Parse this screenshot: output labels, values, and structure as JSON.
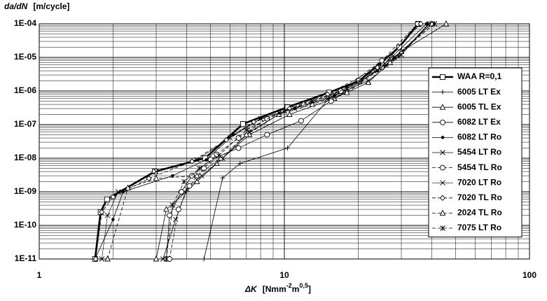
{
  "chart_data": {
    "type": "line",
    "y_label_symbol": "da/dN",
    "y_label_unit": "[m/cycle]",
    "x_label_symbol": "ΔK",
    "x_label_parts": [
      "[Nmm",
      "-2",
      "m",
      "0,5",
      "]"
    ],
    "xlog": true,
    "ylog": true,
    "grid": true,
    "minor_grid": true,
    "legend": "right",
    "xlim": [
      1,
      100
    ],
    "xticks": [
      1,
      10,
      100
    ],
    "ylim": [
      1e-11,
      0.0001
    ],
    "yticks": [
      {
        "value": 1e-11,
        "label": "1E-11"
      },
      {
        "value": 1e-10,
        "label": "1E-10"
      },
      {
        "value": 1e-09,
        "label": "1E-09"
      },
      {
        "value": 1e-08,
        "label": "1E-08"
      },
      {
        "value": 1e-07,
        "label": "1E-07"
      },
      {
        "value": 1e-06,
        "label": "1E-06"
      },
      {
        "value": 1e-05,
        "label": "1E-05"
      },
      {
        "value": 0.0001,
        "label": "1E-04"
      }
    ],
    "series": [
      {
        "name": "WAA R=0,1",
        "color": "#000000",
        "marker": "square",
        "dash": "solid",
        "width": 2.6,
        "x": [
          1.69,
          1.78,
          1.89,
          2.96,
          4.75,
          6.78,
          10.3,
          15.2,
          20.2,
          29.4,
          35.1
        ],
        "values": [
          1e-11,
          2.5e-10,
          6e-10,
          4e-09,
          1e-08,
          1.05e-07,
          3.3e-07,
          9e-07,
          2e-06,
          2e-05,
          0.0001
        ]
      },
      {
        "name": "6005 LT Ex",
        "color": "#000000",
        "marker": "plus",
        "dash": "solid",
        "width": 0.8,
        "x": [
          4.7,
          5.6,
          6.6,
          10.3,
          15.2,
          20.5,
          29.4,
          38.8
        ],
        "values": [
          1e-11,
          2.6e-09,
          7e-09,
          2e-08,
          6e-07,
          2e-06,
          1.1e-05,
          0.0001
        ]
      },
      {
        "name": "6005 TL Ex",
        "color": "#000000",
        "marker": "triangle",
        "dash": "solid",
        "width": 0.8,
        "x": [
          3.0,
          3.3,
          4.4,
          5.3,
          7.2,
          10.5,
          16,
          22,
          30,
          45.7
        ],
        "values": [
          1e-11,
          3e-10,
          2e-09,
          7e-09,
          5e-08,
          2e-07,
          6e-07,
          1.8e-06,
          1.5e-05,
          0.0001
        ]
      },
      {
        "name": "6082 LT Ex",
        "color": "#000000",
        "marker": "circle",
        "dash": "solid",
        "width": 0.8,
        "x": [
          3.3,
          3.4,
          3.8,
          4.2,
          5.0,
          6.5,
          8.5,
          11.7,
          15.5,
          25,
          35
        ],
        "values": [
          1e-11,
          2e-10,
          1e-09,
          3e-09,
          9e-09,
          2e-08,
          5e-08,
          1.3e-07,
          5e-07,
          5e-06,
          0.0001
        ]
      },
      {
        "name": "6082 LT Ro",
        "color": "#000000",
        "marker": "dot",
        "dash": "solid",
        "width": 0.8,
        "x": [
          1.69,
          2.0,
          2.2,
          3.5,
          4.8,
          6.2,
          8,
          11,
          16,
          24,
          38
        ],
        "values": [
          1e-11,
          1.5e-10,
          1e-09,
          3e-09,
          9e-09,
          5e-08,
          1.5e-07,
          3e-07,
          7e-07,
          4e-06,
          0.0001
        ]
      },
      {
        "name": "5454 LT Ro",
        "color": "#000000",
        "marker": "x",
        "dash": "solid",
        "width": 0.8,
        "x": [
          3.2,
          3.6,
          4.0,
          4.6,
          5.6,
          7.2,
          10,
          15,
          22,
          30,
          39
        ],
        "values": [
          1e-11,
          1.5e-10,
          1.2e-09,
          3e-09,
          1e-08,
          6e-08,
          2.5e-07,
          6e-07,
          2e-06,
          1.2e-05,
          0.0001
        ]
      },
      {
        "name": "5454 TL Ro",
        "color": "#000000",
        "marker": "circle",
        "dash": "dashed",
        "width": 0.8,
        "x": [
          3.4,
          3.7,
          4.1,
          4.7,
          5.3,
          6.5,
          8.5,
          12,
          17,
          25,
          35
        ],
        "values": [
          1e-11,
          3e-10,
          1.5e-09,
          5e-09,
          1.3e-08,
          4e-08,
          1.5e-07,
          4e-07,
          1e-06,
          8e-06,
          0.0001
        ]
      },
      {
        "name": "7020 LT Ro",
        "color": "#000000",
        "marker": "x",
        "dash": "solid",
        "width": 0.6,
        "x": [
          1.8,
          1.9,
          2.1,
          3.0,
          4.4,
          6.0,
          8,
          11,
          16,
          26,
          40
        ],
        "values": [
          1e-11,
          2e-10,
          1e-09,
          4e-09,
          9e-09,
          4e-08,
          1.5e-07,
          3e-07,
          8e-07,
          6e-06,
          0.0001
        ]
      },
      {
        "name": "7020 TL Ro",
        "color": "#000000",
        "marker": "diamond",
        "dash": "dashed",
        "width": 0.8,
        "x": [
          1.7,
          1.8,
          2.0,
          2.8,
          4.2,
          5.8,
          7.5,
          10.5,
          15,
          24,
          36
        ],
        "values": [
          1e-11,
          2.5e-10,
          7e-10,
          2.5e-09,
          8e-09,
          3.5e-08,
          1.2e-07,
          3e-07,
          8e-07,
          5e-06,
          0.0001
        ]
      },
      {
        "name": "2024 TL Ro",
        "color": "#000000",
        "marker": "triangle",
        "dash": "dashed",
        "width": 0.8,
        "x": [
          1.9,
          2.3,
          3.0,
          4.4,
          5.5,
          7.0,
          9.5,
          13,
          18,
          27,
          40
        ],
        "values": [
          1e-11,
          1.3e-09,
          2.5e-09,
          3e-09,
          1e-08,
          5e-08,
          2e-07,
          4e-07,
          9e-07,
          7e-06,
          0.0001
        ]
      },
      {
        "name": "7075 LT Ro",
        "color": "#000000",
        "marker": "asterisk",
        "dash": "dashed",
        "width": 0.8,
        "x": [
          3.3,
          3.5,
          3.9,
          4.5,
          5.4,
          7.0,
          9.5,
          13,
          18,
          28,
          41
        ],
        "values": [
          1e-11,
          4e-10,
          2e-09,
          5e-09,
          1.2e-08,
          7e-08,
          2.2e-07,
          5e-07,
          1.2e-06,
          1e-05,
          0.0001
        ]
      }
    ]
  }
}
